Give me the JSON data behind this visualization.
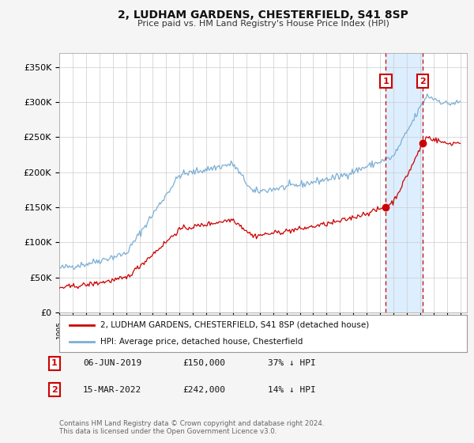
{
  "title": "2, LUDHAM GARDENS, CHESTERFIELD, S41 8SP",
  "subtitle": "Price paid vs. HM Land Registry's House Price Index (HPI)",
  "ylabel_ticks": [
    "£0",
    "£50K",
    "£100K",
    "£150K",
    "£200K",
    "£250K",
    "£300K",
    "£350K"
  ],
  "ytick_values": [
    0,
    50000,
    100000,
    150000,
    200000,
    250000,
    300000,
    350000
  ],
  "ylim": [
    0,
    370000
  ],
  "hpi_color": "#7bafd4",
  "price_color": "#cc0000",
  "sale1_year": 2019.43,
  "sale2_year": 2022.2,
  "sale1_price": 150000,
  "sale2_price": 242000,
  "sale1_date": "06-JUN-2019",
  "sale2_date": "15-MAR-2022",
  "sale1_label": "37% ↓ HPI",
  "sale2_label": "14% ↓ HPI",
  "legend_label1": "2, LUDHAM GARDENS, CHESTERFIELD, S41 8SP (detached house)",
  "legend_label2": "HPI: Average price, detached house, Chesterfield",
  "footer": "Contains HM Land Registry data © Crown copyright and database right 2024.\nThis data is licensed under the Open Government Licence v3.0.",
  "bg_color": "#f5f5f5",
  "plot_bg": "#ffffff",
  "grid_color": "#cccccc",
  "span_color": "#ddeeff",
  "xlim_start": 1995,
  "xlim_end": 2025.5
}
